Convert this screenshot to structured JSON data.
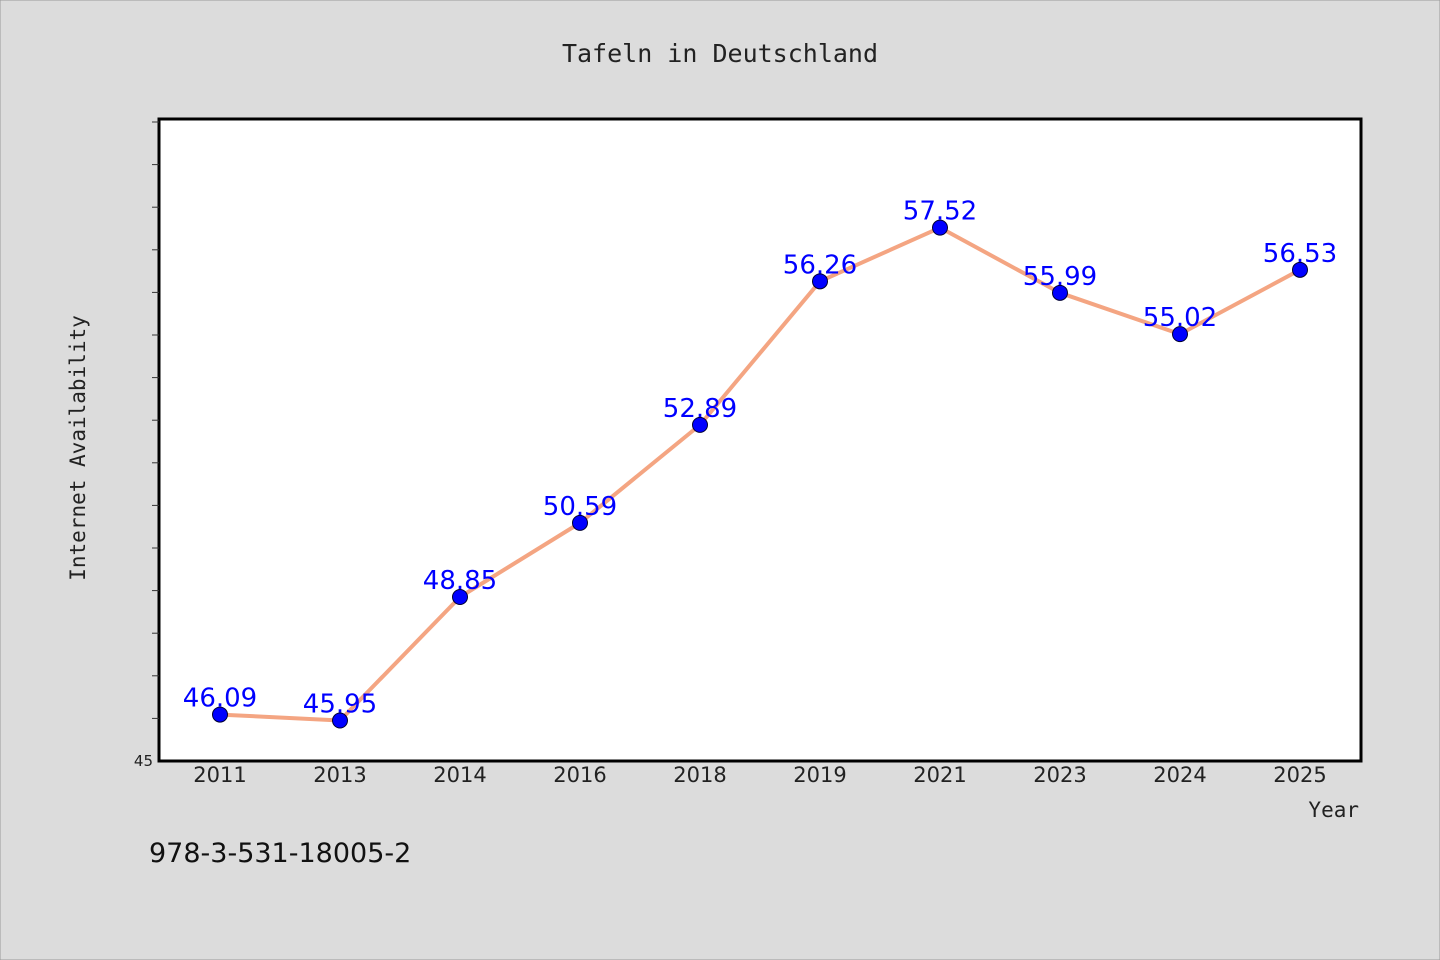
{
  "chart_data": {
    "type": "line",
    "title": "Tafeln in Deutschland",
    "xlabel": "Year",
    "ylabel": "Internet Availability",
    "categories": [
      "2011",
      "2013",
      "2014",
      "2016",
      "2018",
      "2019",
      "2021",
      "2023",
      "2024",
      "2025"
    ],
    "series": [
      {
        "values": [
          46.09,
          45.95,
          48.85,
          50.59,
          52.89,
          56.26,
          57.52,
          55.99,
          55.02,
          56.53
        ],
        "labels": [
          "46.09",
          "45.95",
          "48.85",
          "50.59",
          "52.89",
          "56.26",
          "57.52",
          "55.99",
          "55.02",
          "56.53"
        ]
      }
    ],
    "ylim": [
      45,
      60
    ],
    "ytick_label": "45",
    "grid": false,
    "legend": "none",
    "line_color": "#f4a582",
    "marker_color": "#0000ff",
    "label_color": "#0000ff"
  },
  "footer": {
    "isbn": "978-3-531-18005-2"
  }
}
